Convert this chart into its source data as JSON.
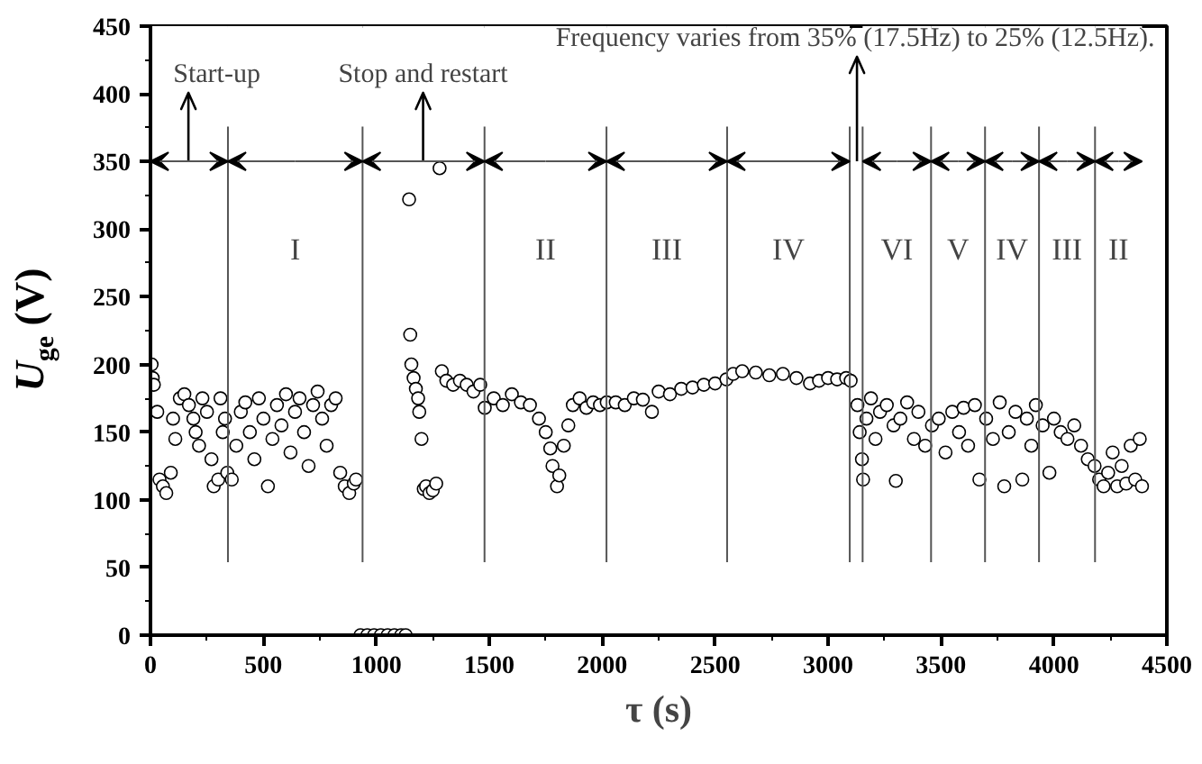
{
  "chart_data": {
    "type": "scatter",
    "xlabel": "τ (s)",
    "ylabel": "U$_{ge}$ (V)",
    "xlim": [
      0,
      4500
    ],
    "ylim": [
      0,
      450
    ],
    "xticks": [
      0,
      500,
      1000,
      1500,
      2000,
      2500,
      3000,
      3500,
      4000,
      4500
    ],
    "yticks": [
      0,
      50,
      100,
      150,
      200,
      250,
      300,
      350,
      400,
      450
    ],
    "grid": false,
    "marker": "circle",
    "series": [
      {
        "color": "#000000",
        "x": [
          5,
          10,
          15,
          30,
          40,
          55,
          70,
          90,
          100,
          110,
          130,
          150,
          170,
          190,
          200,
          215,
          230,
          250,
          270,
          280,
          300,
          310,
          320,
          330,
          340,
          360,
          380,
          400,
          420,
          440,
          460,
          480,
          500,
          520,
          540,
          560,
          580,
          600,
          620,
          640,
          660,
          680,
          700,
          720,
          740,
          760,
          780,
          800,
          820,
          840,
          860,
          880,
          900,
          910,
          930,
          960,
          990,
          1020,
          1050,
          1080,
          1110,
          1130,
          1145,
          1150,
          1155,
          1165,
          1175,
          1185,
          1190,
          1200,
          1210,
          1220,
          1235,
          1250,
          1265,
          1280,
          1290,
          1310,
          1340,
          1370,
          1400,
          1430,
          1460,
          1480,
          1520,
          1560,
          1600,
          1640,
          1680,
          1720,
          1750,
          1770,
          1780,
          1800,
          1810,
          1830,
          1850,
          1870,
          1900,
          1930,
          1960,
          1990,
          2020,
          2060,
          2100,
          2140,
          2180,
          2220,
          2250,
          2300,
          2350,
          2400,
          2450,
          2500,
          2550,
          2580,
          2620,
          2680,
          2740,
          2800,
          2860,
          2920,
          2960,
          3000,
          3040,
          3080,
          3100,
          3130,
          3140,
          3150,
          3155,
          3170,
          3190,
          3210,
          3230,
          3260,
          3290,
          3300,
          3320,
          3350,
          3380,
          3400,
          3430,
          3460,
          3490,
          3520,
          3550,
          3580,
          3600,
          3620,
          3650,
          3670,
          3700,
          3730,
          3760,
          3780,
          3800,
          3830,
          3860,
          3880,
          3900,
          3920,
          3950,
          3980,
          4000,
          4030,
          4060,
          4090,
          4120,
          4150,
          4180,
          4200,
          4220,
          4240,
          4260,
          4280,
          4300,
          4320,
          4340,
          4360,
          4380,
          4390
        ],
        "values": [
          200,
          190,
          185,
          165,
          115,
          110,
          105,
          120,
          160,
          145,
          175,
          178,
          170,
          160,
          150,
          140,
          175,
          165,
          130,
          110,
          115,
          175,
          150,
          160,
          120,
          115,
          140,
          165,
          172,
          150,
          130,
          175,
          160,
          110,
          145,
          170,
          155,
          178,
          135,
          165,
          175,
          150,
          125,
          170,
          180,
          160,
          140,
          170,
          175,
          120,
          110,
          105,
          112,
          115,
          0,
          0,
          0,
          0,
          0,
          0,
          0,
          0,
          322,
          222,
          200,
          190,
          182,
          175,
          165,
          145,
          108,
          110,
          105,
          107,
          112,
          345,
          195,
          188,
          185,
          188,
          185,
          180,
          185,
          168,
          175,
          170,
          178,
          172,
          170,
          160,
          150,
          138,
          125,
          110,
          118,
          140,
          155,
          170,
          175,
          168,
          172,
          170,
          172,
          172,
          170,
          175,
          174,
          165,
          180,
          178,
          182,
          183,
          185,
          186,
          189,
          193,
          195,
          194,
          192,
          193,
          190,
          186,
          188,
          190,
          189,
          190,
          188,
          170,
          150,
          130,
          115,
          160,
          175,
          145,
          165,
          170,
          155,
          114,
          160,
          172,
          145,
          165,
          140,
          155,
          160,
          135,
          165,
          150,
          168,
          140,
          170,
          115,
          160,
          145,
          172,
          110,
          150,
          165,
          115,
          160,
          140,
          170,
          155,
          120,
          160,
          150,
          145,
          155,
          140,
          130,
          125,
          115,
          110,
          120,
          135,
          110,
          125,
          112,
          140,
          115,
          145,
          110
        ]
      }
    ],
    "ref_lines": [
      {
        "axis": "x",
        "value": 168,
        "label": "Start-up"
      },
      {
        "axis": "x",
        "value": 1207,
        "label": "Stop and restart"
      },
      {
        "axis": "x",
        "value": 3128,
        "label": "Frequency varies from 35% (17.5Hz) to 25% (12.5Hz)."
      },
      {
        "axis": "x",
        "value": 343,
        "label": null
      },
      {
        "axis": "x",
        "value": 939,
        "label": null
      },
      {
        "axis": "x",
        "value": 1479,
        "label": null
      },
      {
        "axis": "x",
        "value": 2019,
        "label": null
      },
      {
        "axis": "x",
        "value": 2553,
        "label": null
      },
      {
        "axis": "x",
        "value": 3096,
        "label": null
      },
      {
        "axis": "x",
        "value": 3153,
        "label": null
      },
      {
        "axis": "x",
        "value": 3456,
        "label": null
      },
      {
        "axis": "x",
        "value": 3695,
        "label": null
      },
      {
        "axis": "x",
        "value": 3934,
        "label": null
      },
      {
        "axis": "x",
        "value": 4182,
        "label": null
      }
    ],
    "bands": [
      {
        "axis": "x",
        "from": 0,
        "to": 343,
        "label": null
      },
      {
        "axis": "x",
        "from": 343,
        "to": 939,
        "label": "I"
      },
      {
        "axis": "x",
        "from": 939,
        "to": 1479,
        "label": null
      },
      {
        "axis": "x",
        "from": 1479,
        "to": 2019,
        "label": "II"
      },
      {
        "axis": "x",
        "from": 2019,
        "to": 2553,
        "label": "III"
      },
      {
        "axis": "x",
        "from": 2553,
        "to": 3096,
        "label": "IV"
      },
      {
        "axis": "x",
        "from": 3153,
        "to": 3456,
        "label": "VI"
      },
      {
        "axis": "x",
        "from": 3456,
        "to": 3695,
        "label": "V"
      },
      {
        "axis": "x",
        "from": 3695,
        "to": 3934,
        "label": "IV"
      },
      {
        "axis": "x",
        "from": 3934,
        "to": 4182,
        "label": "III"
      },
      {
        "axis": "x",
        "from": 4182,
        "to": 4390,
        "label": "II"
      }
    ]
  }
}
